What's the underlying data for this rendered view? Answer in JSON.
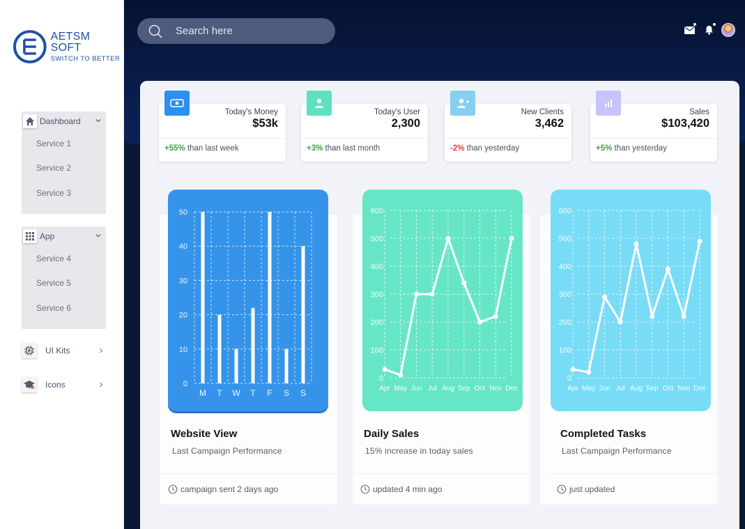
{
  "brand": {
    "name": "AETSM SOFT",
    "tagline": "SWITCH TO BETTER",
    "color": "#1d52a6"
  },
  "search": {
    "placeholder": "Search here"
  },
  "header_icons": [
    "mail-icon",
    "bell-icon",
    "avatar"
  ],
  "sidebar": {
    "groups": [
      {
        "label": "Dashboard",
        "icon": "home-icon",
        "items": [
          "Service 1",
          "Service 2",
          "Service 3"
        ]
      },
      {
        "label": "App",
        "icon": "grid-icon",
        "items": [
          "Service 4",
          "Service 5",
          "Service 6"
        ]
      }
    ],
    "singles": [
      {
        "label": "UI Kits",
        "icon": "chip-icon"
      },
      {
        "label": "Icons",
        "icon": "graduation-cap-icon"
      }
    ]
  },
  "stats": [
    {
      "label": "Today's Money",
      "value": "$53k",
      "change": "+55%",
      "change_text": "than last week",
      "icon": "money-icon",
      "color": "#2d8ff0",
      "positive": true
    },
    {
      "label": "Today's User",
      "value": "2,300",
      "change": "+3%",
      "change_text": "than last month",
      "icon": "user-icon",
      "color": "#5fe0c0",
      "positive": true
    },
    {
      "label": "New Clients",
      "value": "3,462",
      "change": "-2%",
      "change_text": "than yesterday",
      "icon": "add-user-icon",
      "color": "#86cfee",
      "positive": false
    },
    {
      "label": "Sales",
      "value": "$103,420",
      "change": "+5%",
      "change_text": "than yesterday",
      "icon": "chart-icon",
      "color": "#c6c4fa",
      "positive": true
    }
  ],
  "cards": [
    {
      "title": "Website View",
      "subtitle": "Last Campaign Performance",
      "footer": "campaign sent 2 days ago"
    },
    {
      "title": "Daily Sales",
      "subtitle": "15% increase in today sales",
      "footer": "updated 4 min ago"
    },
    {
      "title": "Completed Tasks",
      "subtitle": "Last Campaign Performance",
      "footer": "just updated"
    }
  ],
  "chart_data": [
    {
      "type": "bar",
      "title": "Website View",
      "categories": [
        "M",
        "T",
        "W",
        "T",
        "F",
        "S",
        "S"
      ],
      "values": [
        50,
        20,
        10,
        22,
        50,
        10,
        40
      ],
      "yticks": [
        "0",
        "10",
        "20",
        "30",
        "40",
        "50"
      ],
      "ylim": [
        0,
        50
      ],
      "background": "#3594ea",
      "grid": true
    },
    {
      "type": "line",
      "title": "Daily Sales",
      "categories": [
        "Apr",
        "May",
        "Jun",
        "Jul",
        "Aug",
        "Sep",
        "Oct",
        "Nov",
        "Dec"
      ],
      "values": [
        30,
        10,
        300,
        300,
        500,
        340,
        200,
        220,
        500
      ],
      "yticks": [
        "0",
        "100",
        "200",
        "300",
        "400",
        "500",
        "600"
      ],
      "ylim": [
        0,
        600
      ],
      "background": "#67e6c7",
      "grid": true
    },
    {
      "type": "line",
      "title": "Completed Tasks",
      "categories": [
        "Apr",
        "May",
        "Jun",
        "Jul",
        "Aug",
        "Sep",
        "Oct",
        "Nov",
        "Dec"
      ],
      "values": [
        30,
        20,
        290,
        200,
        480,
        220,
        390,
        220,
        490
      ],
      "yticks": [
        "0",
        "100",
        "200",
        "300",
        "400",
        "500",
        "600"
      ],
      "ylim": [
        0,
        600
      ],
      "background": "#79dcf7",
      "grid": true
    }
  ]
}
